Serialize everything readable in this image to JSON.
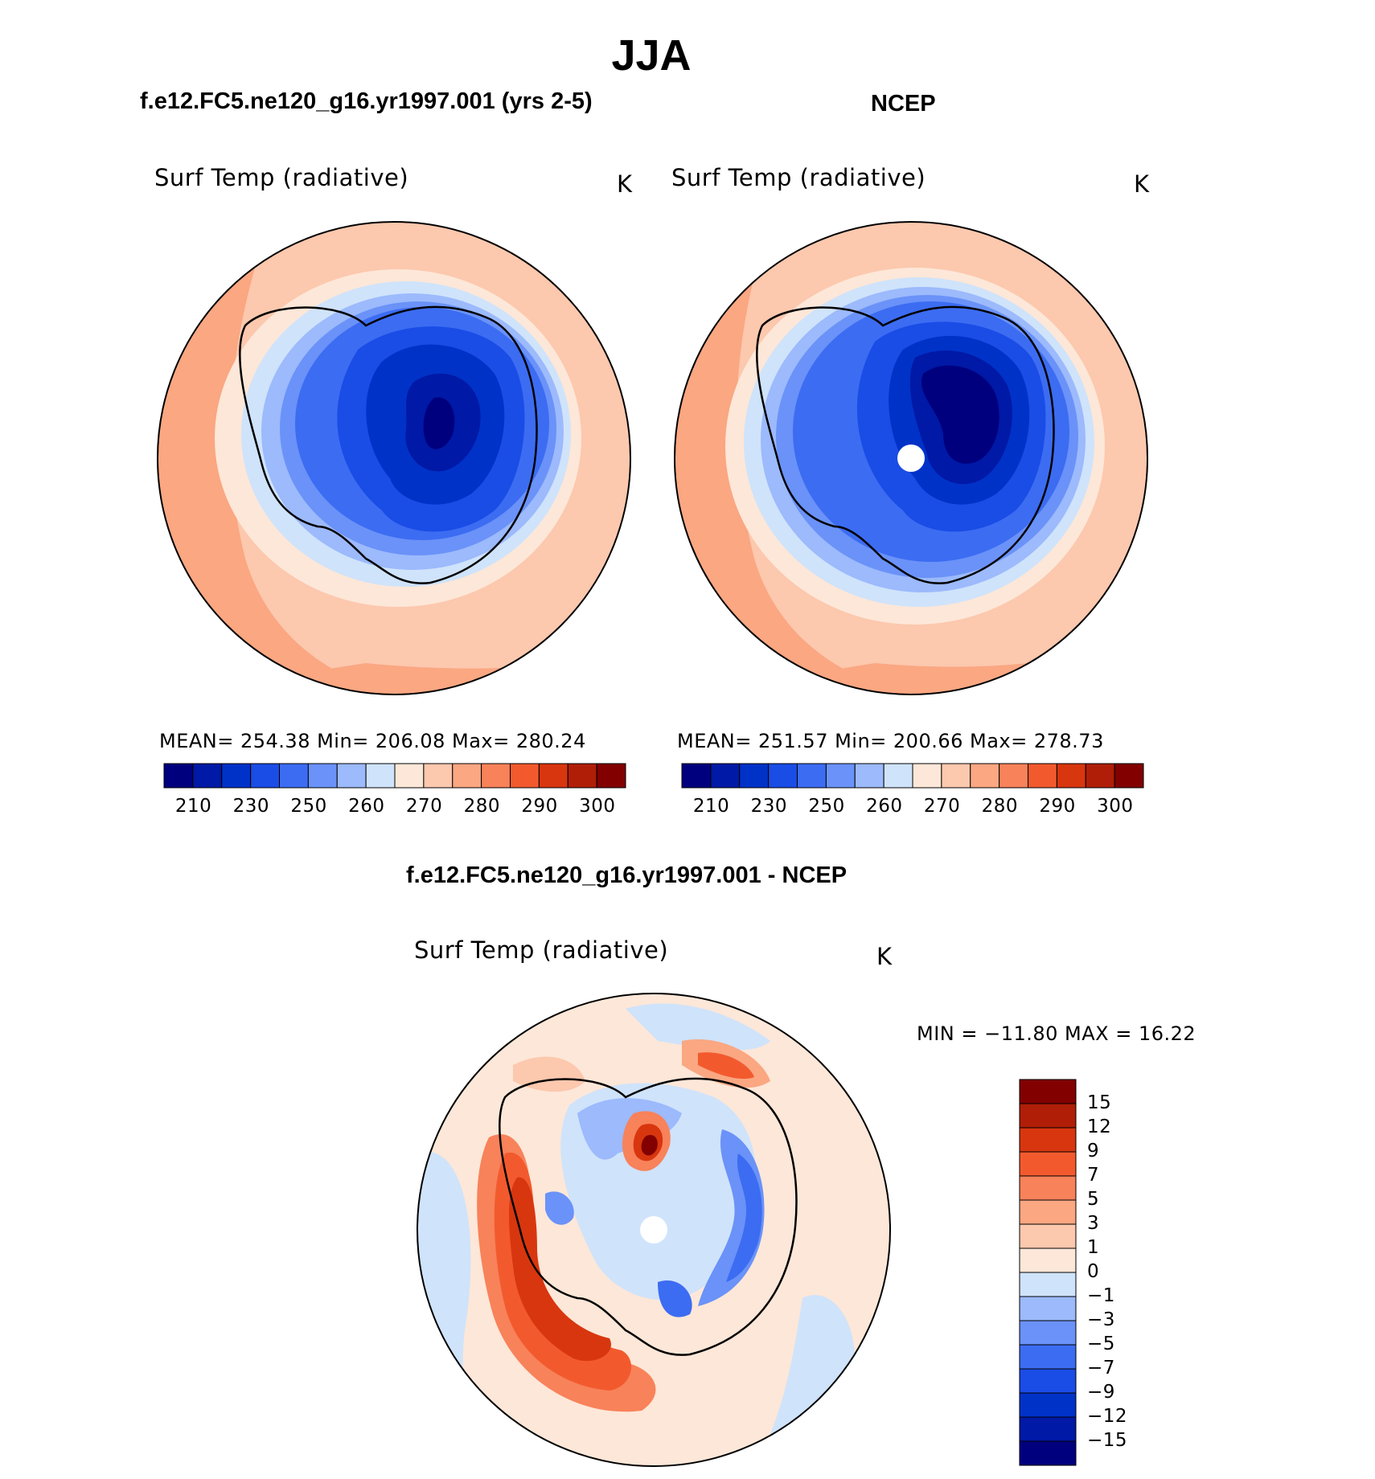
{
  "figure": {
    "title": "JJA",
    "colors": {
      "abs_scale": [
        "#00007f",
        "#0019a6",
        "#0032c8",
        "#1a4ce6",
        "#3c6cf2",
        "#6a92f8",
        "#9cbafc",
        "#cfe3fb",
        "#fde7d8",
        "#fcc8ae",
        "#faa782",
        "#f8825a",
        "#f25a2e",
        "#d8360f",
        "#b01e08",
        "#820000"
      ],
      "diff_scale": [
        "#00007f",
        "#0019a6",
        "#0032c8",
        "#1a4ce6",
        "#3c6cf2",
        "#6a92f8",
        "#9cbafc",
        "#cfe3fb",
        "#fde7d8",
        "#fcc8ae",
        "#faa782",
        "#f8825a",
        "#f25a2e",
        "#d8360f",
        "#b01e08",
        "#820000"
      ]
    }
  },
  "panels": {
    "model": {
      "title": "f.e12.FC5.ne120_g16.yr1997.001 (yrs 2-5)",
      "variable": "Surf Temp (radiative)",
      "units": "K",
      "stats": "MEAN=  254.38   Min=  206.08   Max=  280.24",
      "colorbar_ticks": [
        "210",
        "230",
        "250",
        "260",
        "270",
        "280",
        "290",
        "300"
      ]
    },
    "obs": {
      "title": "NCEP",
      "variable": "Surf Temp (radiative)",
      "units": "K",
      "stats": "MEAN=  251.57   Min=  200.66   Max=  278.73",
      "colorbar_ticks": [
        "210",
        "230",
        "250",
        "260",
        "270",
        "280",
        "290",
        "300"
      ]
    },
    "diff": {
      "title": "f.e12.FC5.ne120_g16.yr1997.001 - NCEP",
      "variable": "Surf Temp (radiative)",
      "units": "K",
      "stats": "MIN = −11.80 MAX =   16.22",
      "colorbar_ticks": [
        "15",
        "12",
        "9",
        "7",
        "5",
        "3",
        "1",
        "0",
        "−1",
        "−3",
        "−5",
        "−7",
        "−9",
        "−12",
        "−15"
      ]
    }
  }
}
